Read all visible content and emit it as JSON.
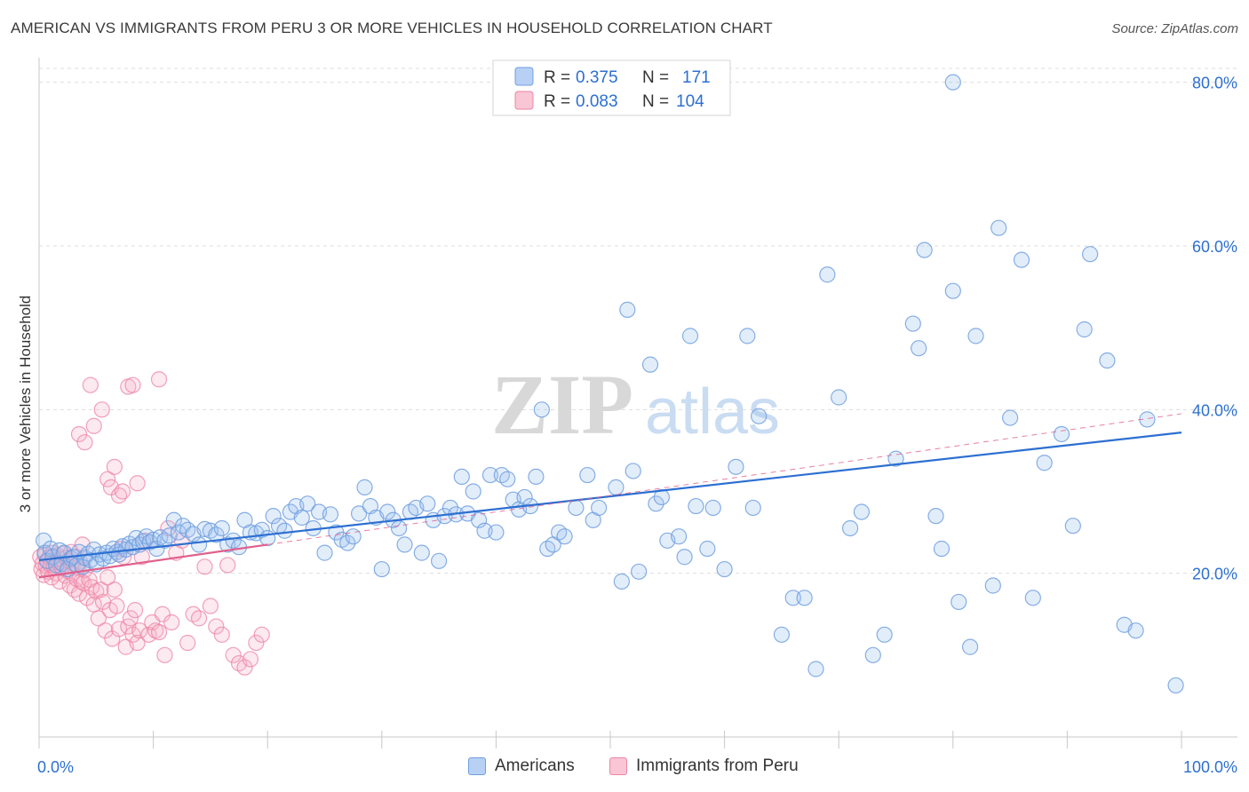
{
  "title": "AMERICAN VS IMMIGRANTS FROM PERU 3 OR MORE VEHICLES IN HOUSEHOLD CORRELATION CHART",
  "source": "Source: ZipAtlas.com",
  "watermark": {
    "zip": "ZIP",
    "atlas": "atlas"
  },
  "colors": {
    "blue": "#6f9fe0",
    "blue_fill": "rgba(160,194,240,0.35)",
    "blue_line": "#2c6fd1",
    "pink": "#ee86a6",
    "pink_fill": "rgba(246,178,200,0.35)",
    "pink_line": "#e0608c",
    "value_text": "#2c6fd1",
    "grid": "#dddddd"
  },
  "legend": {
    "items": [
      {
        "r_label": "R =",
        "r_value": "0.375",
        "n_label": "N =",
        "n_value": "171"
      },
      {
        "r_label": "R =",
        "r_value": "0.083",
        "n_label": "N =",
        "n_value": "104"
      }
    ]
  },
  "bottom_legend": [
    "Americans",
    "Immigrants from Peru"
  ],
  "chart_data": {
    "type": "scatter",
    "title": "AMERICAN VS IMMIGRANTS FROM PERU 3 OR MORE VEHICLES IN HOUSEHOLD CORRELATION CHART",
    "xlabel": "",
    "ylabel": "3 or more Vehicles in Household",
    "xlim": [
      0,
      100
    ],
    "ylim": [
      0,
      83
    ],
    "x_tick_labels": [
      "0.0%",
      "100.0%"
    ],
    "y_ticks": [
      20,
      40,
      60,
      80
    ],
    "y_tick_labels": [
      "20.0%",
      "40.0%",
      "60.0%",
      "80.0%"
    ],
    "grid": true,
    "legend_position": "top-center",
    "series": [
      {
        "name": "Americans",
        "color": "#6f9fe0",
        "trend": {
          "x": [
            0,
            100
          ],
          "y": [
            21.6,
            37.2
          ]
        },
        "points": [
          [
            0.4,
            24.0
          ],
          [
            0.5,
            22.5
          ],
          [
            0.7,
            21.5
          ],
          [
            1.0,
            23.0
          ],
          [
            1.2,
            22.0
          ],
          [
            1.5,
            21.0
          ],
          [
            1.8,
            22.8
          ],
          [
            2.0,
            21.2
          ],
          [
            2.2,
            22.5
          ],
          [
            2.5,
            20.5
          ],
          [
            2.8,
            21.8
          ],
          [
            3.0,
            22.0
          ],
          [
            3.3,
            21.0
          ],
          [
            3.5,
            22.6
          ],
          [
            3.8,
            20.8
          ],
          [
            4.0,
            21.9
          ],
          [
            4.3,
            22.4
          ],
          [
            4.5,
            21.6
          ],
          [
            4.8,
            22.9
          ],
          [
            5.0,
            21.1
          ],
          [
            5.3,
            22.3
          ],
          [
            5.6,
            21.8
          ],
          [
            5.9,
            22.5
          ],
          [
            6.2,
            22.1
          ],
          [
            6.5,
            23.0
          ],
          [
            6.8,
            22.6
          ],
          [
            7.0,
            22.3
          ],
          [
            7.3,
            23.3
          ],
          [
            7.6,
            22.9
          ],
          [
            7.9,
            23.6
          ],
          [
            8.2,
            23.2
          ],
          [
            8.5,
            24.3
          ],
          [
            8.8,
            23.5
          ],
          [
            9.1,
            23.9
          ],
          [
            9.4,
            24.5
          ],
          [
            9.7,
            23.8
          ],
          [
            10.0,
            24.1
          ],
          [
            10.3,
            23.0
          ],
          [
            10.6,
            24.4
          ],
          [
            11.0,
            24.0
          ],
          [
            11.4,
            24.6
          ],
          [
            11.8,
            26.5
          ],
          [
            12.2,
            25.0
          ],
          [
            12.6,
            25.8
          ],
          [
            13.0,
            25.3
          ],
          [
            13.5,
            24.8
          ],
          [
            14.0,
            23.5
          ],
          [
            14.5,
            25.4
          ],
          [
            15.0,
            25.2
          ],
          [
            15.5,
            24.7
          ],
          [
            16.0,
            25.5
          ],
          [
            16.5,
            23.5
          ],
          [
            17.0,
            24.0
          ],
          [
            17.5,
            23.2
          ],
          [
            18.0,
            26.5
          ],
          [
            18.5,
            25.0
          ],
          [
            19.0,
            24.9
          ],
          [
            19.5,
            25.3
          ],
          [
            20.0,
            24.3
          ],
          [
            20.5,
            27.0
          ],
          [
            21.0,
            25.8
          ],
          [
            21.5,
            25.2
          ],
          [
            22.0,
            27.5
          ],
          [
            22.5,
            28.2
          ],
          [
            23.0,
            26.8
          ],
          [
            23.5,
            28.5
          ],
          [
            24.0,
            25.5
          ],
          [
            24.5,
            27.5
          ],
          [
            25.0,
            22.5
          ],
          [
            25.5,
            27.2
          ],
          [
            26.0,
            25.0
          ],
          [
            26.5,
            24.1
          ],
          [
            27.0,
            23.7
          ],
          [
            27.5,
            24.5
          ],
          [
            28.0,
            27.3
          ],
          [
            28.5,
            30.5
          ],
          [
            29.0,
            28.2
          ],
          [
            29.5,
            26.8
          ],
          [
            30.0,
            20.5
          ],
          [
            30.5,
            27.5
          ],
          [
            31.0,
            26.5
          ],
          [
            31.5,
            25.5
          ],
          [
            32.0,
            23.5
          ],
          [
            32.5,
            27.5
          ],
          [
            33.0,
            28.0
          ],
          [
            33.5,
            22.5
          ],
          [
            34.0,
            28.5
          ],
          [
            34.5,
            26.5
          ],
          [
            35.0,
            21.5
          ],
          [
            35.5,
            27.0
          ],
          [
            36.0,
            28.0
          ],
          [
            36.5,
            27.2
          ],
          [
            37.0,
            31.8
          ],
          [
            37.5,
            27.3
          ],
          [
            38.0,
            30.0
          ],
          [
            38.5,
            26.5
          ],
          [
            39.0,
            25.2
          ],
          [
            39.5,
            32.0
          ],
          [
            40.0,
            25.0
          ],
          [
            40.5,
            32.0
          ],
          [
            41.0,
            31.5
          ],
          [
            41.5,
            29.0
          ],
          [
            42.0,
            27.8
          ],
          [
            42.5,
            29.3
          ],
          [
            43.0,
            28.2
          ],
          [
            43.5,
            31.8
          ],
          [
            44.0,
            40.0
          ],
          [
            44.5,
            23.0
          ],
          [
            45.0,
            23.5
          ],
          [
            45.5,
            25.0
          ],
          [
            46.0,
            24.5
          ],
          [
            47.0,
            28.0
          ],
          [
            48.0,
            32.0
          ],
          [
            48.5,
            26.5
          ],
          [
            49.0,
            28.0
          ],
          [
            50.5,
            30.5
          ],
          [
            51.0,
            19.0
          ],
          [
            51.5,
            52.2
          ],
          [
            52.0,
            32.5
          ],
          [
            52.5,
            20.2
          ],
          [
            53.5,
            45.5
          ],
          [
            54.0,
            28.5
          ],
          [
            54.5,
            29.3
          ],
          [
            55.0,
            24.0
          ],
          [
            56.0,
            24.5
          ],
          [
            56.5,
            22.0
          ],
          [
            57.0,
            49.0
          ],
          [
            57.5,
            28.2
          ],
          [
            58.5,
            23.0
          ],
          [
            59.0,
            28.0
          ],
          [
            60.0,
            20.5
          ],
          [
            61.0,
            33.0
          ],
          [
            62.0,
            49.0
          ],
          [
            62.5,
            28.0
          ],
          [
            63.0,
            39.2
          ],
          [
            65.0,
            12.5
          ],
          [
            66.0,
            17.0
          ],
          [
            67.0,
            17.0
          ],
          [
            68.0,
            8.3
          ],
          [
            69.0,
            56.5
          ],
          [
            70.0,
            41.5
          ],
          [
            71.0,
            25.5
          ],
          [
            72.0,
            27.5
          ],
          [
            73.0,
            10.0
          ],
          [
            74.0,
            12.5
          ],
          [
            75.0,
            34.0
          ],
          [
            76.5,
            50.5
          ],
          [
            77.0,
            47.5
          ],
          [
            77.5,
            59.5
          ],
          [
            78.5,
            27.0
          ],
          [
            79.0,
            23.0
          ],
          [
            80.0,
            54.5
          ],
          [
            80.5,
            16.5
          ],
          [
            81.5,
            11.0
          ],
          [
            82.0,
            49.0
          ],
          [
            83.5,
            18.5
          ],
          [
            84.0,
            62.2
          ],
          [
            85.0,
            39.0
          ],
          [
            86.0,
            58.3
          ],
          [
            87.0,
            17.0
          ],
          [
            88.0,
            33.5
          ],
          [
            89.5,
            37.0
          ],
          [
            90.5,
            25.8
          ],
          [
            91.5,
            49.8
          ],
          [
            92.0,
            59.0
          ],
          [
            93.5,
            46.0
          ],
          [
            95.0,
            13.7
          ],
          [
            96.0,
            13.0
          ],
          [
            97.0,
            38.8
          ],
          [
            99.5,
            6.3
          ],
          [
            80.0,
            80.0
          ]
        ]
      },
      {
        "name": "Immigrants from Peru",
        "color": "#ee86a6",
        "trend": {
          "x": [
            0,
            20
          ],
          "y": [
            19.5,
            23.5
          ]
        },
        "points": [
          [
            0.1,
            22.0
          ],
          [
            0.2,
            20.5
          ],
          [
            0.3,
            21.2
          ],
          [
            0.4,
            19.8
          ],
          [
            0.5,
            22.3
          ],
          [
            0.6,
            20.9
          ],
          [
            0.7,
            21.5
          ],
          [
            0.8,
            20.2
          ],
          [
            0.9,
            22.0
          ],
          [
            1.0,
            21.0
          ],
          [
            1.1,
            19.5
          ],
          [
            1.2,
            22.5
          ],
          [
            1.3,
            20.8
          ],
          [
            1.4,
            21.6
          ],
          [
            1.5,
            20.0
          ],
          [
            1.6,
            22.2
          ],
          [
            1.7,
            21.3
          ],
          [
            1.8,
            19.0
          ],
          [
            1.9,
            21.8
          ],
          [
            2.0,
            20.6
          ],
          [
            2.1,
            22.4
          ],
          [
            2.2,
            21.1
          ],
          [
            2.3,
            19.7
          ],
          [
            2.4,
            21.9
          ],
          [
            2.5,
            20.3
          ],
          [
            2.6,
            21.5
          ],
          [
            2.7,
            18.5
          ],
          [
            2.8,
            22.6
          ],
          [
            2.9,
            20.0
          ],
          [
            3.0,
            21.2
          ],
          [
            3.1,
            18.0
          ],
          [
            3.2,
            22.0
          ],
          [
            3.3,
            19.3
          ],
          [
            3.4,
            20.7
          ],
          [
            3.5,
            17.5
          ],
          [
            3.6,
            21.4
          ],
          [
            3.7,
            19.0
          ],
          [
            3.8,
            23.5
          ],
          [
            3.9,
            18.8
          ],
          [
            4.0,
            20.4
          ],
          [
            4.2,
            17.0
          ],
          [
            4.4,
            19.2
          ],
          [
            4.6,
            18.3
          ],
          [
            4.8,
            16.2
          ],
          [
            5.0,
            17.8
          ],
          [
            5.2,
            14.5
          ],
          [
            5.4,
            18.0
          ],
          [
            5.6,
            16.5
          ],
          [
            5.8,
            13.0
          ],
          [
            6.0,
            19.5
          ],
          [
            6.2,
            15.5
          ],
          [
            6.4,
            12.0
          ],
          [
            6.6,
            18.0
          ],
          [
            6.8,
            16.0
          ],
          [
            7.0,
            13.2
          ],
          [
            7.2,
            23.0
          ],
          [
            7.4,
            22.0
          ],
          [
            7.6,
            11.0
          ],
          [
            7.8,
            13.5
          ],
          [
            8.0,
            14.5
          ],
          [
            8.2,
            12.5
          ],
          [
            8.4,
            15.5
          ],
          [
            8.6,
            11.5
          ],
          [
            8.8,
            13.0
          ],
          [
            9.0,
            22.0
          ],
          [
            9.3,
            24.0
          ],
          [
            9.6,
            12.5
          ],
          [
            9.9,
            14.0
          ],
          [
            10.2,
            13.0
          ],
          [
            10.5,
            12.8
          ],
          [
            10.8,
            15.0
          ],
          [
            11.0,
            10.0
          ],
          [
            11.3,
            25.5
          ],
          [
            11.6,
            14.0
          ],
          [
            12.0,
            22.5
          ],
          [
            12.5,
            24.0
          ],
          [
            13.0,
            11.5
          ],
          [
            13.5,
            15.0
          ],
          [
            14.0,
            14.5
          ],
          [
            14.5,
            20.8
          ],
          [
            15.0,
            16.0
          ],
          [
            15.5,
            13.5
          ],
          [
            16.0,
            12.5
          ],
          [
            16.5,
            21.0
          ],
          [
            17.0,
            10.0
          ],
          [
            17.5,
            9.0
          ],
          [
            18.0,
            8.5
          ],
          [
            18.5,
            9.5
          ],
          [
            19.0,
            11.5
          ],
          [
            19.5,
            12.5
          ],
          [
            3.5,
            37.0
          ],
          [
            4.0,
            36.0
          ],
          [
            4.5,
            43.0
          ],
          [
            4.8,
            38.0
          ],
          [
            5.5,
            40.0
          ],
          [
            6.0,
            31.5
          ],
          [
            6.3,
            30.5
          ],
          [
            6.6,
            33.0
          ],
          [
            7.0,
            29.5
          ],
          [
            7.3,
            30.0
          ],
          [
            7.8,
            42.8
          ],
          [
            8.2,
            43.0
          ],
          [
            8.6,
            31.0
          ],
          [
            10.5,
            43.7
          ]
        ]
      }
    ],
    "legend_stats": [
      {
        "series": "Americans",
        "R": 0.375,
        "N": 171
      },
      {
        "series": "Immigrants from Peru",
        "R": 0.083,
        "N": 104
      }
    ]
  }
}
